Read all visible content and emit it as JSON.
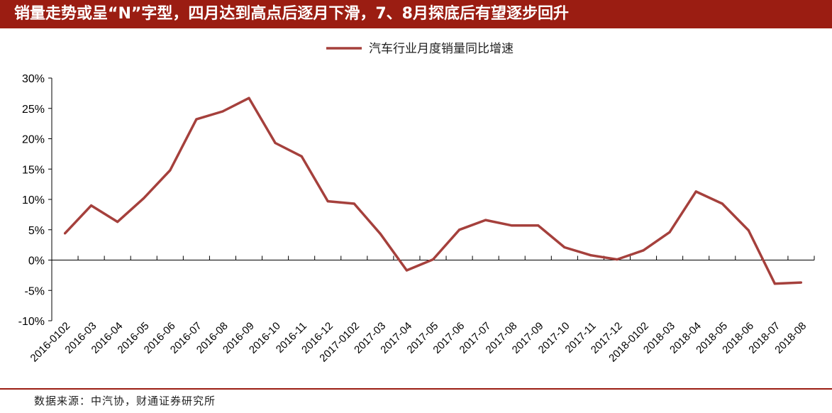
{
  "title": "销量走势或呈“N”字型，四月达到高点后逐月下滑，7、8月探底后有望逐步回升",
  "source": "数据来源：中汽协，财通证券研究所",
  "colors": {
    "banner": "#9b1d12",
    "series": "#a5403c"
  },
  "chart_data": {
    "type": "line",
    "ylim": [
      -10,
      30
    ],
    "yticks": [
      -10,
      -5,
      0,
      5,
      10,
      15,
      20,
      25,
      30
    ],
    "ytick_labels": [
      "-10%",
      "-5%",
      "0%",
      "5%",
      "10%",
      "15%",
      "20%",
      "25%",
      "30%"
    ],
    "y_unit": "%",
    "grid": false,
    "legend_position": "top-center",
    "categories": [
      "2016-0102",
      "2016-03",
      "2016-04",
      "2016-05",
      "2016-06",
      "2016-07",
      "2016-08",
      "2016-09",
      "2016-10",
      "2016-11",
      "2016-12",
      "2017-0102",
      "2017-03",
      "2017-04",
      "2017-05",
      "2017-06",
      "2017-07",
      "2017-08",
      "2017-09",
      "2017-10",
      "2017-11",
      "2017-12",
      "2018-0102",
      "2018-03",
      "2018-04",
      "2018-05",
      "2018-06",
      "2018-07",
      "2018-08"
    ],
    "series": [
      {
        "name": "汽车行业月度销量同比增速",
        "values": [
          4.4,
          9.0,
          6.3,
          10.2,
          14.8,
          23.2,
          24.5,
          26.7,
          19.3,
          17.1,
          9.7,
          9.3,
          4.3,
          -1.7,
          0.1,
          5.0,
          6.6,
          5.7,
          5.7,
          2.1,
          0.8,
          0.1,
          1.6,
          4.6,
          11.3,
          9.3,
          4.9,
          -3.9,
          -3.7
        ]
      }
    ]
  }
}
